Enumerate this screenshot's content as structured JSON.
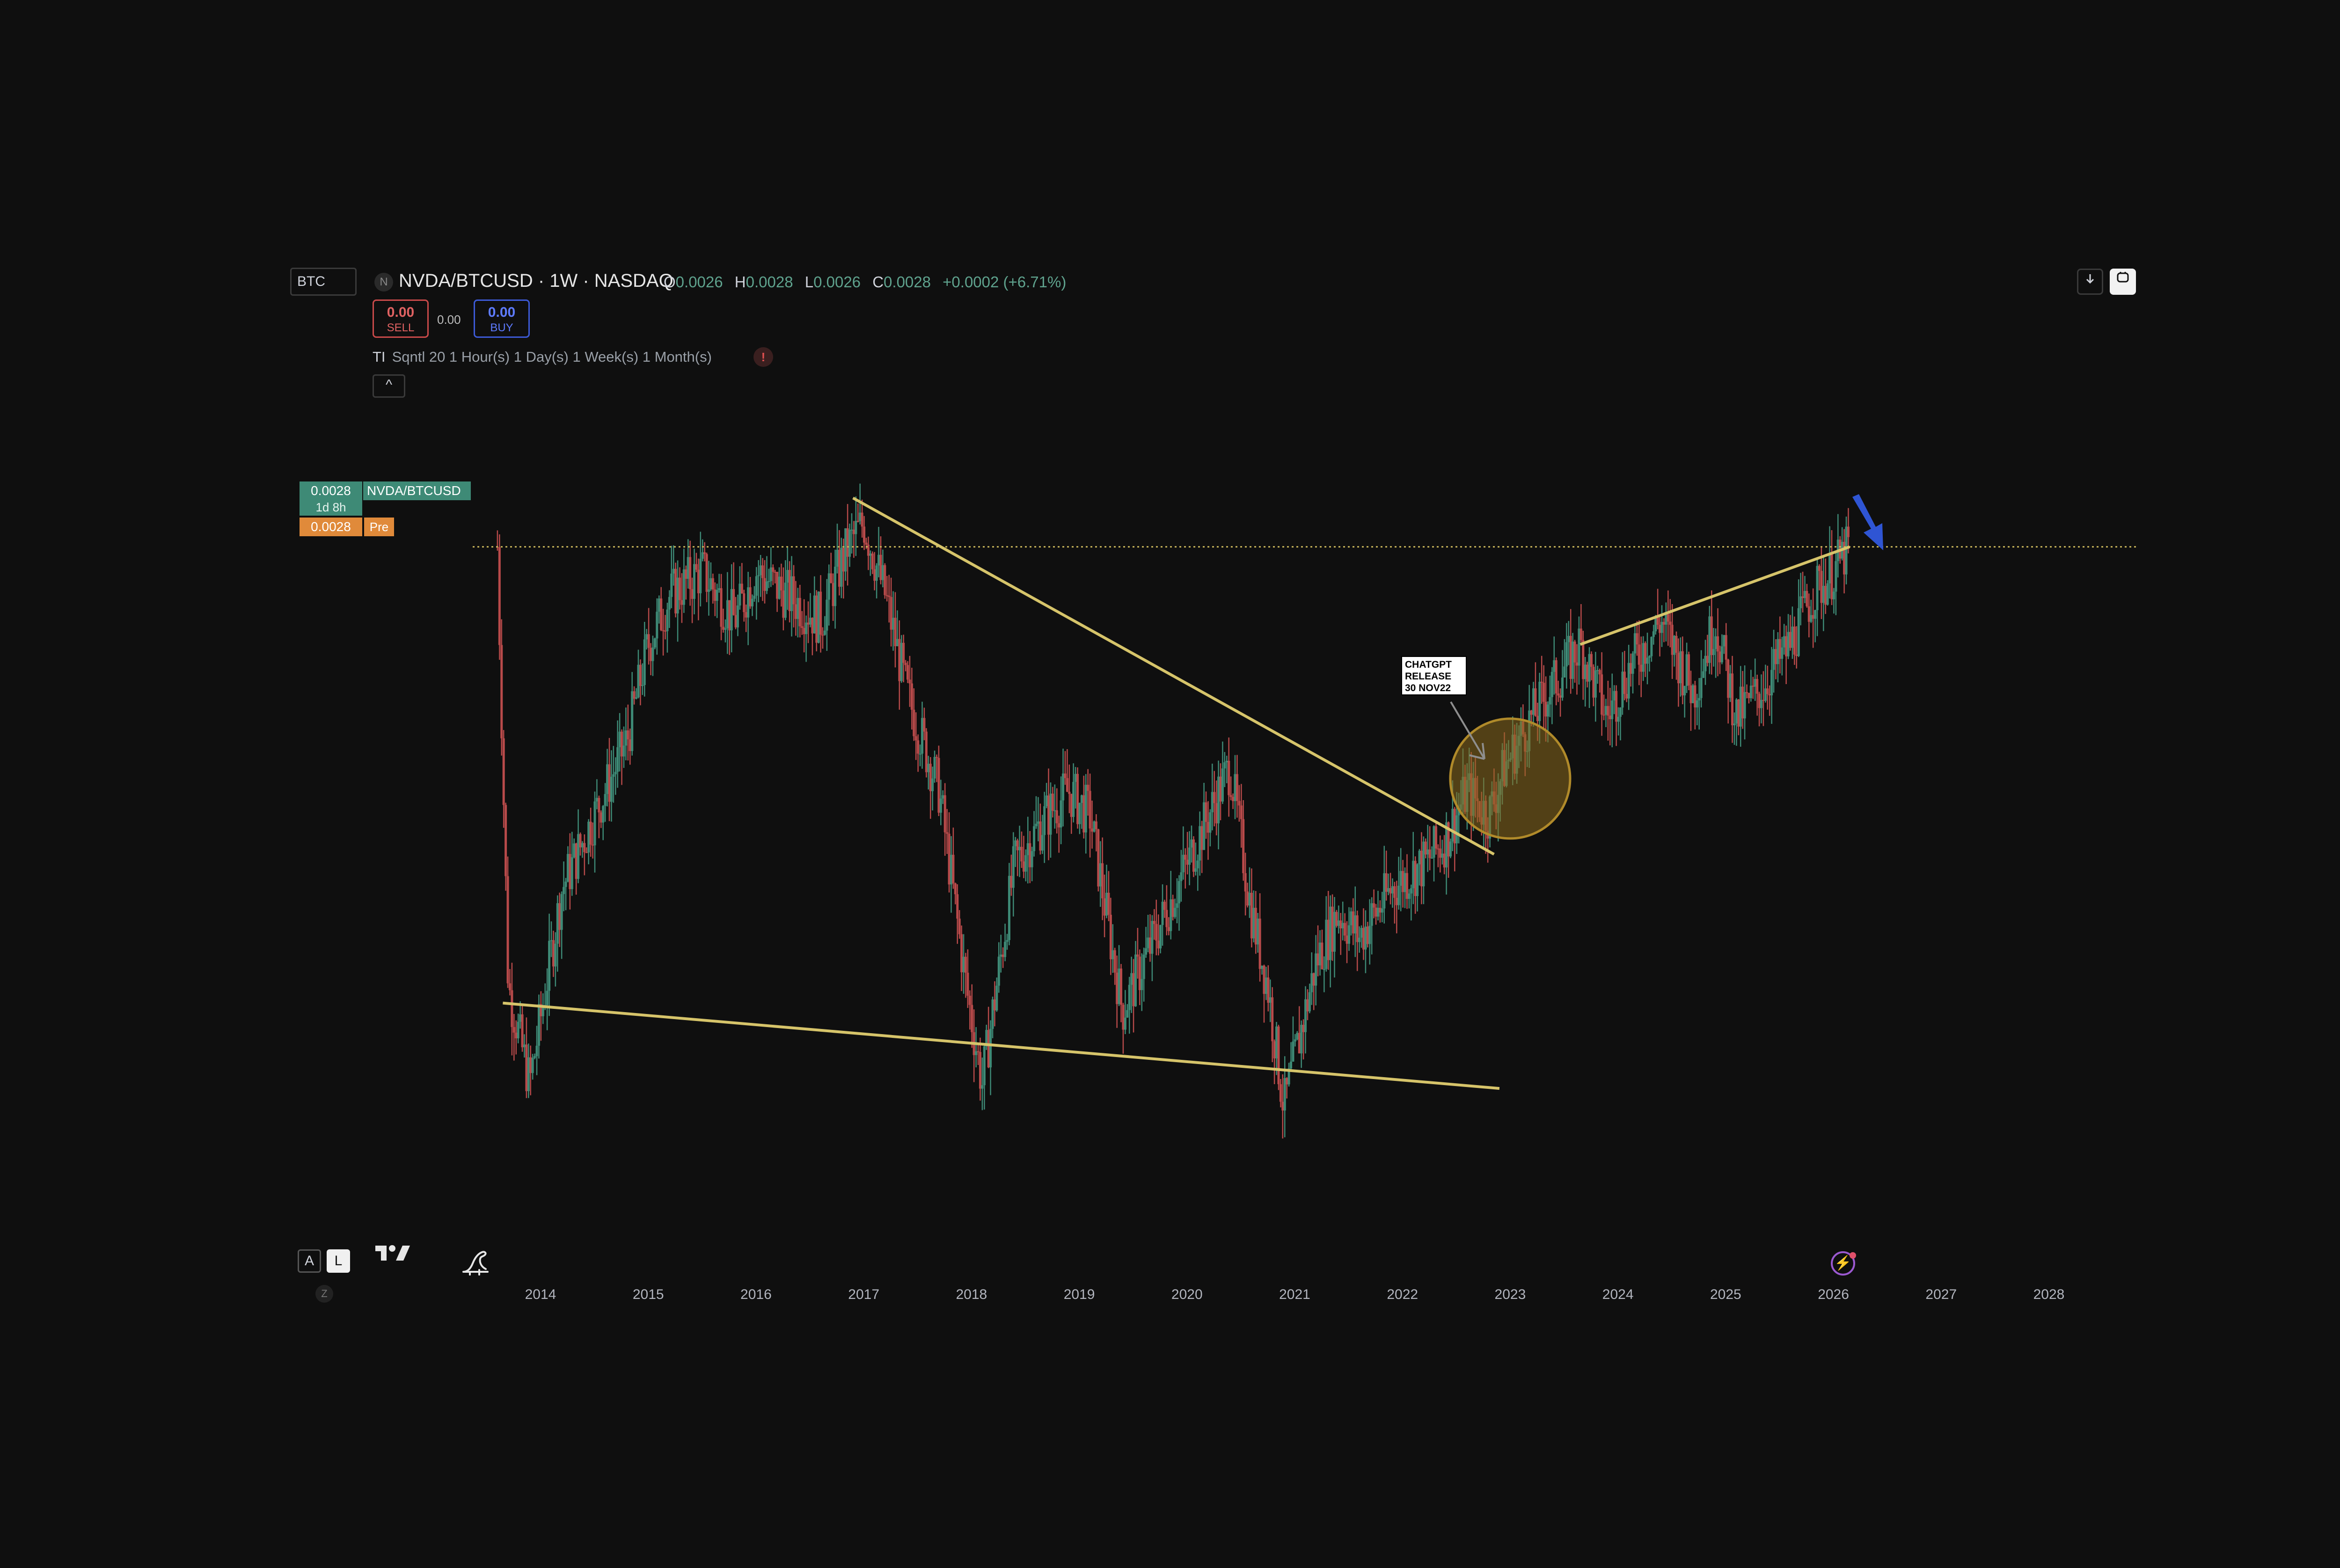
{
  "header": {
    "symbol_box": "BTC",
    "exchange_badge": "N",
    "title": "NVDA/BTCUSD · 1W · NASDAQ",
    "ohlc": {
      "o_label": "O",
      "o": "0.0026",
      "h_label": "H",
      "h": "0.0028",
      "l_label": "L",
      "l": "0.0026",
      "c_label": "C",
      "c": "0.0028",
      "change": "+0.0002 (+6.71%)"
    }
  },
  "trade": {
    "sell_value": "0.00",
    "sell_label": "SELL",
    "spread": "0.00",
    "buy_value": "0.00",
    "buy_label": "BUY"
  },
  "indicator": {
    "ti": "TI",
    "text": "Sqntl 20 1 Hour(s) 1 Day(s) 1 Week(s) 1 Month(s)",
    "warning": "!",
    "collapse": "^"
  },
  "price_scale_labels": {
    "last_price": "0.0028",
    "symbol": "NVDA/BTCUSD",
    "countdown": "1d 8h",
    "pre_price": "0.0028",
    "pre": "Pre"
  },
  "toolbar": {
    "auto": "A",
    "log": "L",
    "z": "Z",
    "download_icon": "download-icon",
    "fullscreen_icon": "fullscreen-icon"
  },
  "annotation": {
    "lines": [
      "CHATGPT",
      "RELEASE",
      "30 NOV22"
    ]
  },
  "colors": {
    "background": "#0f0f0f",
    "up": "#3e8a76",
    "down": "#b84a4a",
    "trendline": "#d6c46a",
    "circle_fill": "#8a6a1e",
    "arrow": "#2f55d4",
    "last_price_line": "#c8b45a"
  },
  "chart_data": {
    "type": "line",
    "title": "NVDA/BTCUSD · 1W · NASDAQ",
    "x_tick_labels": [
      "2014",
      "2015",
      "2016",
      "2017",
      "2018",
      "2019",
      "2020",
      "2021",
      "2022",
      "2023",
      "2024",
      "2025",
      "2026",
      "2027",
      "2028"
    ],
    "last_price": 0.0028,
    "series": [
      {
        "x": [
          2013.6,
          2013.7,
          2013.9,
          2014.2,
          2014.5,
          2014.8,
          2015.0,
          2015.2,
          2015.5,
          2015.8,
          2016.0,
          2016.3,
          2016.6,
          2016.85,
          2017.0,
          2017.2,
          2017.4,
          2017.7,
          2017.95,
          2018.1,
          2018.4,
          2018.7,
          2018.9,
          2019.1,
          2019.4,
          2019.6,
          2019.9,
          2020.0,
          2020.2,
          2020.4,
          2020.6,
          2020.75,
          2020.9,
          2021.0,
          2021.2,
          2021.4,
          2021.6,
          2021.9,
          2022.2,
          2022.4,
          2022.6,
          2022.8,
          2022.95,
          2023.2,
          2023.5,
          2023.65,
          2023.9,
          2024.1,
          2024.4,
          2024.7,
          2024.9,
          2025.1,
          2025.3,
          2025.6,
          2025.8,
          2026.0,
          2026.15
        ],
        "y": [
          0.0028,
          0.001,
          0.0006,
          0.0014,
          0.0017,
          0.002,
          0.0024,
          0.0026,
          0.0027,
          0.0025,
          0.0027,
          0.0026,
          0.0025,
          0.0028,
          0.0029,
          0.0026,
          0.0022,
          0.0018,
          0.001,
          0.0006,
          0.0015,
          0.0017,
          0.0018,
          0.0017,
          0.0009,
          0.0011,
          0.0014,
          0.0015,
          0.0017,
          0.0019,
          0.0013,
          0.001,
          0.0005,
          0.0007,
          0.0011,
          0.0013,
          0.0012,
          0.0014,
          0.0015,
          0.0016,
          0.0018,
          0.0017,
          0.0019,
          0.0021,
          0.0023,
          0.0024,
          0.0021,
          0.0023,
          0.0025,
          0.0022,
          0.0025,
          0.0021,
          0.0022,
          0.0024,
          0.0026,
          0.0027,
          0.0028
        ]
      }
    ],
    "trendlines": [
      {
        "x": [
          2013.65,
          2022.9
        ],
        "y": [
          0.00093,
          0.00058
        ]
      },
      {
        "x": [
          2016.9,
          2022.85
        ],
        "y": [
          0.003,
          0.00154
        ]
      },
      {
        "x": [
          2023.65,
          2026.15
        ],
        "y": [
          0.0024,
          0.0028
        ]
      }
    ],
    "highlight": {
      "x": 2023.0,
      "y": 0.00185
    },
    "ylim": [
      0.0004,
      0.0032
    ],
    "xlim": [
      2013.1,
      2028.8
    ],
    "grid": false,
    "legend": "none"
  }
}
